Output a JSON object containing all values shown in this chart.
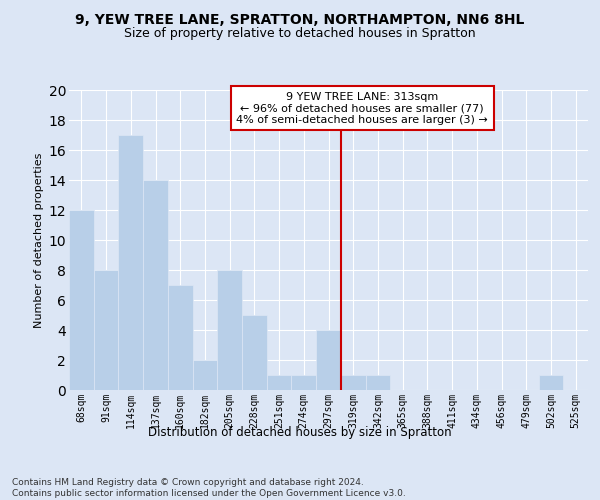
{
  "title1": "9, YEW TREE LANE, SPRATTON, NORTHAMPTON, NN6 8HL",
  "title2": "Size of property relative to detached houses in Spratton",
  "xlabel": "Distribution of detached houses by size in Spratton",
  "ylabel": "Number of detached properties",
  "footnote": "Contains HM Land Registry data © Crown copyright and database right 2024.\nContains public sector information licensed under the Open Government Licence v3.0.",
  "categories": [
    "68sqm",
    "91sqm",
    "114sqm",
    "137sqm",
    "160sqm",
    "182sqm",
    "205sqm",
    "228sqm",
    "251sqm",
    "274sqm",
    "297sqm",
    "319sqm",
    "342sqm",
    "365sqm",
    "388sqm",
    "411sqm",
    "434sqm",
    "456sqm",
    "479sqm",
    "502sqm",
    "525sqm"
  ],
  "values": [
    12,
    8,
    17,
    14,
    7,
    2,
    8,
    5,
    1,
    1,
    4,
    1,
    1,
    0,
    0,
    0,
    0,
    0,
    0,
    1,
    0
  ],
  "bar_color": "#b8cfe8",
  "highlight_color": "#cc0000",
  "annotation_title": "9 YEW TREE LANE: 313sqm",
  "annotation_line1": "← 96% of detached houses are smaller (77)",
  "annotation_line2": "4% of semi-detached houses are larger (3) →",
  "ylim": [
    0,
    20
  ],
  "yticks": [
    0,
    2,
    4,
    6,
    8,
    10,
    12,
    14,
    16,
    18,
    20
  ],
  "bg_color": "#dce6f5",
  "grid_color": "#ffffff",
  "fig_bg_color": "#dce6f5",
  "title1_fontsize": 10,
  "title2_fontsize": 9,
  "xlabel_fontsize": 8.5,
  "ylabel_fontsize": 8,
  "footnote_fontsize": 6.5
}
